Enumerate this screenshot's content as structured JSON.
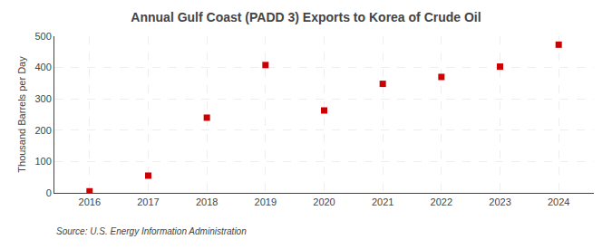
{
  "chart_data": {
    "type": "scatter",
    "title": "Annual Gulf Coast (PADD 3) Exports to Korea of Crude Oil",
    "ylabel": "Thousand Barrels per Day",
    "annotations": [
      "Source: U.S. Energy Information Administration"
    ],
    "x": [
      2016,
      2017,
      2018,
      2019,
      2020,
      2021,
      2022,
      2023,
      2024
    ],
    "values": [
      5,
      55,
      240,
      408,
      263,
      348,
      370,
      403,
      473
    ],
    "color": "#cc0000",
    "marker": "square",
    "xlim": [
      2015.4,
      2024.6
    ],
    "xticks": [
      2016,
      2017,
      2018,
      2019,
      2020,
      2021,
      2022,
      2023,
      2024
    ],
    "ylim": [
      0,
      500
    ],
    "yticks": [
      0,
      100,
      200,
      300,
      400,
      500
    ],
    "grid": true
  }
}
